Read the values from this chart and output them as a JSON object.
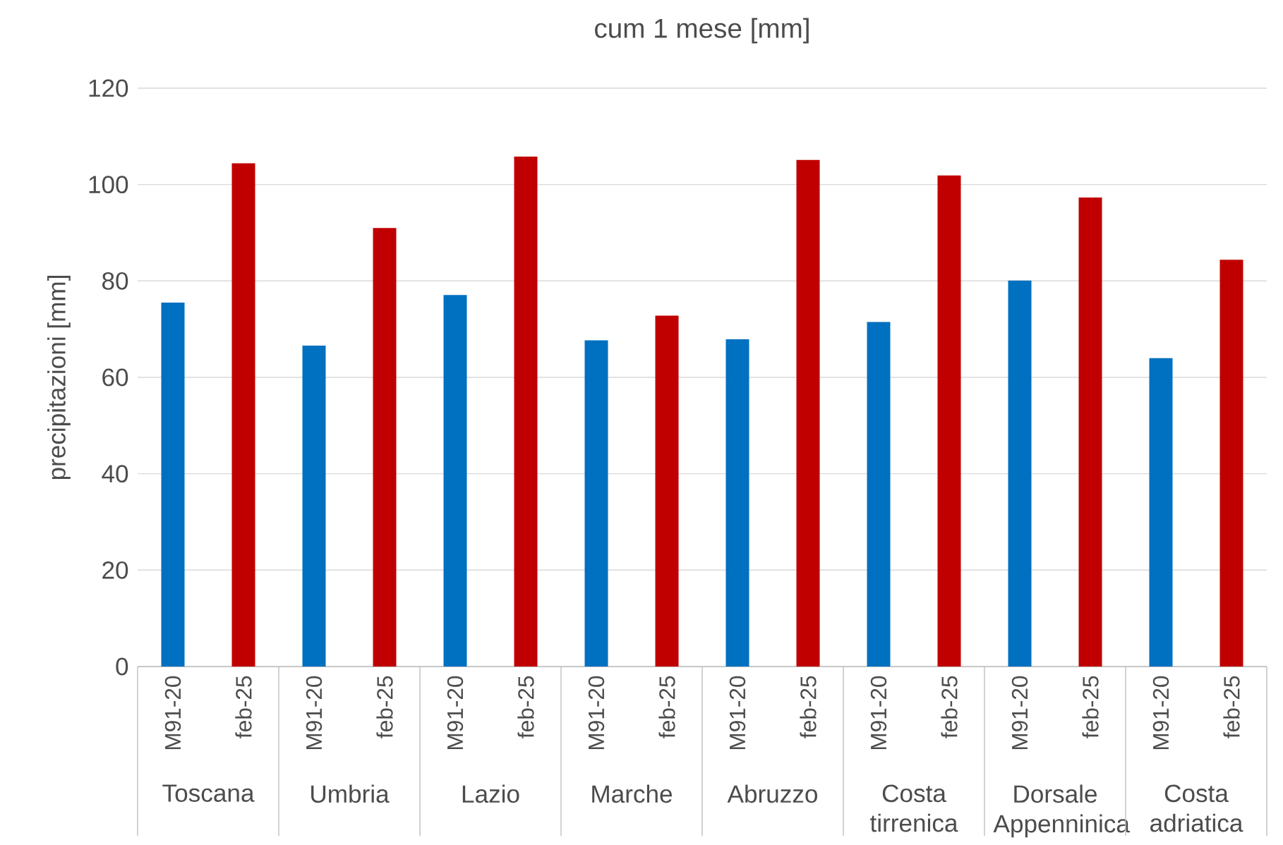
{
  "chart_data": {
    "type": "bar",
    "title": "cum 1 mese [mm]",
    "ylabel": "precipitazioni [mm]",
    "categories": [
      "M91-20",
      "feb-25",
      "M91-20",
      "feb-25",
      "M91-20",
      "feb-25",
      "M91-20",
      "feb-25",
      "M91-20",
      "feb-25",
      "M91-20",
      "feb-25",
      "M91-20",
      "feb-25",
      "M91-20",
      "feb-25"
    ],
    "values": [
      75.5,
      104.4,
      66.6,
      91.0,
      77.1,
      105.8,
      67.7,
      72.8,
      67.9,
      105.1,
      71.5,
      101.9,
      80.1,
      97.3,
      64.0,
      84.4
    ],
    "colors": [
      "#0070c0",
      "#c00000",
      "#0070c0",
      "#c00000",
      "#0070c0",
      "#c00000",
      "#0070c0",
      "#c00000",
      "#0070c0",
      "#c00000",
      "#0070c0",
      "#c00000",
      "#0070c0",
      "#c00000",
      "#0070c0",
      "#c00000"
    ],
    "annotations": [
      "Toscana",
      "Umbria",
      "Lazio",
      "Marche",
      "Abruzzo",
      "Costa tirrenica",
      "Dorsale Appenninica",
      "Costa adriatica"
    ],
    "ylim": [
      0,
      120
    ],
    "yticks": [
      0,
      20,
      40,
      60,
      80,
      100,
      120
    ],
    "grid": "y"
  }
}
